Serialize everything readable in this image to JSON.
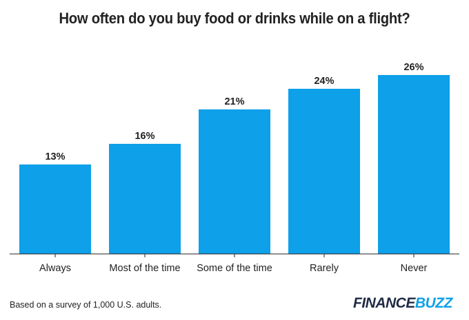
{
  "colors": {
    "bar": "#0ea0e8",
    "text": "#222222",
    "axis": "#222222",
    "logo_dark": "#1f2a44",
    "logo_accent": "#0ea0e8"
  },
  "chart_data": {
    "type": "bar",
    "title": "How often do you buy food or drinks while on a flight?",
    "categories": [
      "Always",
      "Most of the time",
      "Some of the time",
      "Rarely",
      "Never"
    ],
    "values": [
      13,
      16,
      21,
      24,
      26
    ],
    "value_labels": [
      "13%",
      "16%",
      "21%",
      "24%",
      "26%"
    ],
    "ylim": [
      0,
      26
    ],
    "grid": false,
    "legend": "none"
  },
  "footnote": "Based on a survey of 1,000 U.S. adults.",
  "logo": {
    "part1": "FINANCE",
    "part2": "BUZZ"
  }
}
